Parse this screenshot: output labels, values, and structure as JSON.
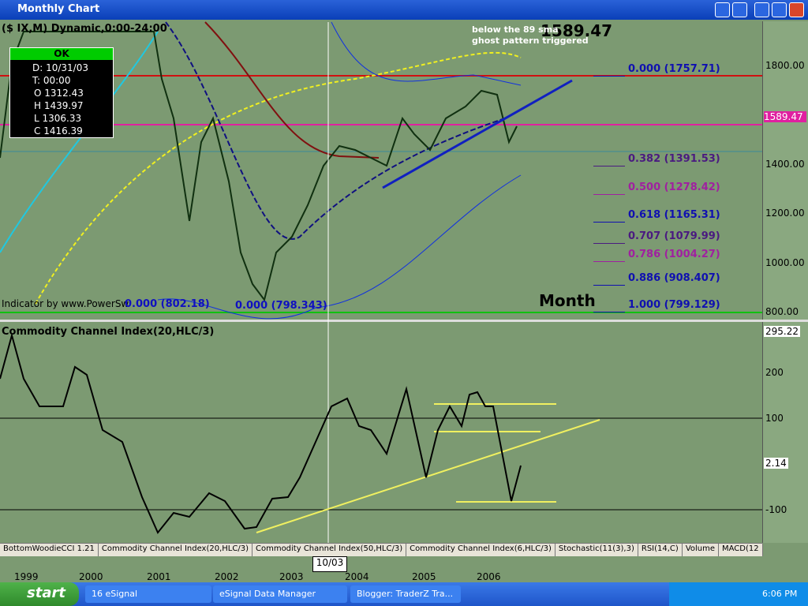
{
  "window": {
    "title": "Monthly Chart"
  },
  "chart": {
    "header": "($ IX,M) Dynamic,0:00-24:00",
    "last_price": "1589.47",
    "annotation": [
      "below the 89 sma",
      "ghost pattern triggered"
    ],
    "info_box": {
      "status": "OK",
      "rows": [
        "D: 10/31/03",
        "T: 00:00",
        "O 1312.43",
        "H 1439.97",
        "L 1306.33",
        "C 1416.39"
      ]
    },
    "credit": "Indicator by www.PowerSw",
    "low_labels": [
      "0.000 (802.18)",
      "0.000 (798.343)"
    ],
    "period": "Month",
    "fib_levels": [
      {
        "label": "0.000 (1757.71)",
        "color": "#1010b0"
      },
      {
        "label": "0.382 (1391.53)",
        "color": "#4a1a80"
      },
      {
        "label": "0.500 (1278.42)",
        "color": "#a020a0"
      },
      {
        "label": "0.618 (1165.31)",
        "color": "#1010b0"
      },
      {
        "label": "0.707 (1079.99)",
        "color": "#4a1a80"
      },
      {
        "label": "0.786 (1004.27)",
        "color": "#a020a0"
      },
      {
        "label": "0.886 (908.407)",
        "color": "#1010b0"
      },
      {
        "label": "1.000 (799.129)",
        "color": "#1010b0"
      }
    ],
    "price_axis": [
      "1800.00",
      "1400.00",
      "1200.00",
      "1000.00",
      "800.00"
    ],
    "price_marker": "1589.47"
  },
  "cci": {
    "title": "Commodity Channel Index(20,HLC/3)",
    "axis": [
      "295.22",
      "200",
      "100",
      "2.14",
      "-100"
    ]
  },
  "tabs": [
    "BottomWoodieCCI 1.21",
    "Commodity Channel Index(20,HLC/3)",
    "Commodity Channel Index(50,HLC/3)",
    "Commodity Channel Index(6,HLC/3)",
    "Stochastic(11(3),3)",
    "RSI(14,C)",
    "Volume",
    "MACD(12"
  ],
  "cursor_date": "10/03",
  "years": [
    "1999",
    "2000",
    "2001",
    "2002",
    "2003",
    "2004",
    "2005",
    "2006"
  ],
  "taskbar": {
    "start": "start",
    "items": [
      "16 eSignal",
      "eSignal Data Manager",
      "Blogger: TraderZ Tra..."
    ],
    "clock": "6:06 PM"
  }
}
